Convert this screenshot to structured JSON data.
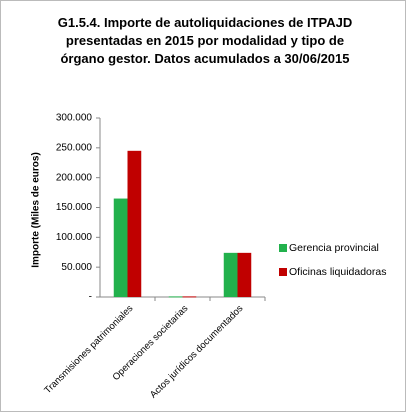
{
  "chart_data": {
    "type": "bar",
    "title": "G1.5.4.  Importe de autoliquidaciones de ITPAJD presentadas en 2015 por modalidad y tipo de órgano gestor. Datos acumulados a 30/06/2015",
    "y_label": "Importe (Miles de euros)",
    "categories": [
      "Transmisiones patrimoniales",
      "Operaciones societarias",
      "Actos jurídicos documentados"
    ],
    "series": [
      {
        "name": "Gerencia provincial",
        "color": "#22b14c",
        "values": [
          165000,
          1000,
          74000
        ]
      },
      {
        "name": "Oficinas liquidadoras",
        "color": "#c00000",
        "values": [
          245000,
          1000,
          74000
        ]
      }
    ],
    "ylim": [
      0,
      300000
    ],
    "yticks": [
      {
        "value": 0,
        "label": "-"
      },
      {
        "value": 50000,
        "label": "50.000"
      },
      {
        "value": 100000,
        "label": "100.000"
      },
      {
        "value": 150000,
        "label": "150.000"
      },
      {
        "value": 200000,
        "label": "200.000"
      },
      {
        "value": 250000,
        "label": "250.000"
      },
      {
        "value": 300000,
        "label": "300.000"
      }
    ],
    "legend": "right",
    "grid": false
  }
}
